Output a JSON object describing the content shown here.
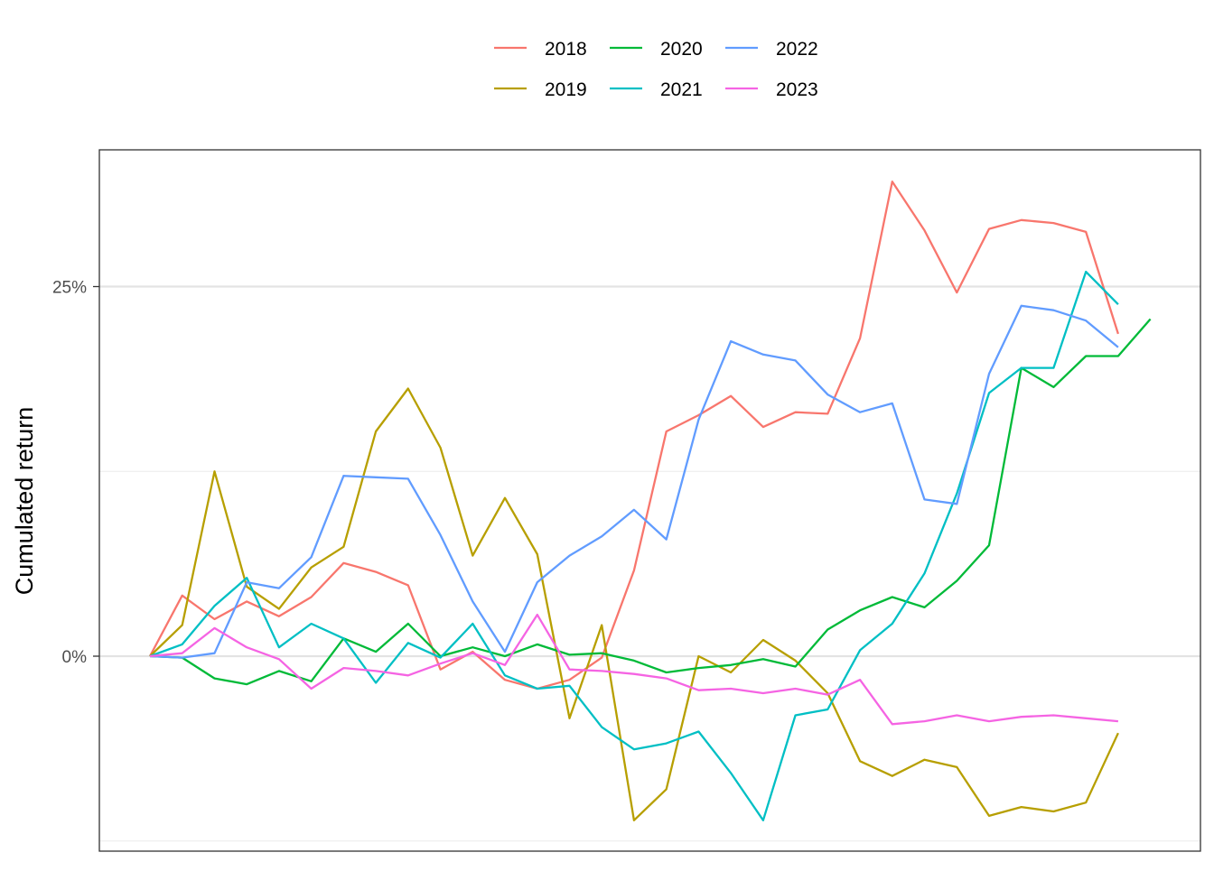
{
  "chart_data": {
    "type": "line",
    "ylabel": "Cumulated return",
    "xlabel": "",
    "ylim": [
      -0.124,
      0.345
    ],
    "yticks": [
      {
        "value": 0,
        "label": "0%"
      },
      {
        "value": 0.25,
        "label": "25%"
      }
    ],
    "minor_gridlines": [
      -0.125,
      0.125
    ],
    "grid": true,
    "legend_position": "top",
    "series": [
      {
        "name": "2018",
        "color": "#F8766D",
        "values": [
          0.0,
          0.041,
          0.025,
          0.037,
          0.027,
          0.04,
          0.063,
          0.057,
          0.048,
          -0.009,
          0.003,
          -0.016,
          -0.022,
          -0.016,
          -0.001,
          0.058,
          0.152,
          0.163,
          0.176,
          0.155,
          0.165,
          0.164,
          0.215,
          0.321,
          0.288,
          0.246,
          0.289,
          0.295,
          0.293,
          0.287,
          0.218
        ]
      },
      {
        "name": "2019",
        "color": "#B79F00",
        "values": [
          0.0,
          0.021,
          0.125,
          0.047,
          0.032,
          0.06,
          0.074,
          0.152,
          0.181,
          0.141,
          0.068,
          0.107,
          0.069,
          -0.042,
          0.021,
          -0.111,
          -0.09,
          0.0,
          -0.011,
          0.011,
          -0.003,
          -0.025,
          -0.071,
          -0.081,
          -0.07,
          -0.075,
          -0.108,
          -0.102,
          -0.105,
          -0.099,
          -0.052
        ]
      },
      {
        "name": "2020",
        "color": "#00BA38",
        "values": [
          0.0,
          -0.001,
          -0.015,
          -0.019,
          -0.01,
          -0.017,
          0.012,
          0.003,
          0.022,
          0.0,
          0.006,
          0.0,
          0.008,
          0.001,
          0.002,
          -0.003,
          -0.011,
          -0.008,
          -0.006,
          -0.002,
          -0.007,
          0.018,
          0.031,
          0.04,
          0.033,
          0.051,
          0.075,
          0.195,
          0.182,
          0.203,
          0.203,
          0.228
        ]
      },
      {
        "name": "2021",
        "color": "#00BFC4",
        "values": [
          0.0,
          0.008,
          0.034,
          0.053,
          0.006,
          0.022,
          0.012,
          -0.018,
          0.009,
          -0.001,
          0.022,
          -0.013,
          -0.022,
          -0.02,
          -0.048,
          -0.063,
          -0.059,
          -0.051,
          -0.079,
          -0.111,
          -0.04,
          -0.036,
          0.004,
          0.022,
          0.056,
          0.11,
          0.178,
          0.195,
          0.195,
          0.26,
          0.238
        ]
      },
      {
        "name": "2022",
        "color": "#619CFF",
        "values": [
          0.0,
          -0.001,
          0.002,
          0.05,
          0.046,
          0.067,
          0.122,
          0.121,
          0.12,
          0.082,
          0.037,
          0.003,
          0.05,
          0.068,
          0.081,
          0.099,
          0.079,
          0.16,
          0.213,
          0.204,
          0.2,
          0.177,
          0.165,
          0.171,
          0.106,
          0.103,
          0.191,
          0.237,
          0.234,
          0.227,
          0.209
        ]
      },
      {
        "name": "2023",
        "color": "#F564E3",
        "values": [
          0.0,
          0.002,
          0.019,
          0.006,
          -0.002,
          -0.022,
          -0.008,
          -0.01,
          -0.013,
          -0.005,
          0.002,
          -0.006,
          0.028,
          -0.009,
          -0.01,
          -0.012,
          -0.015,
          -0.023,
          -0.022,
          -0.025,
          -0.022,
          -0.026,
          -0.016,
          -0.046,
          -0.044,
          -0.04,
          -0.044,
          -0.041,
          -0.04,
          -0.042,
          -0.044
        ]
      }
    ]
  }
}
